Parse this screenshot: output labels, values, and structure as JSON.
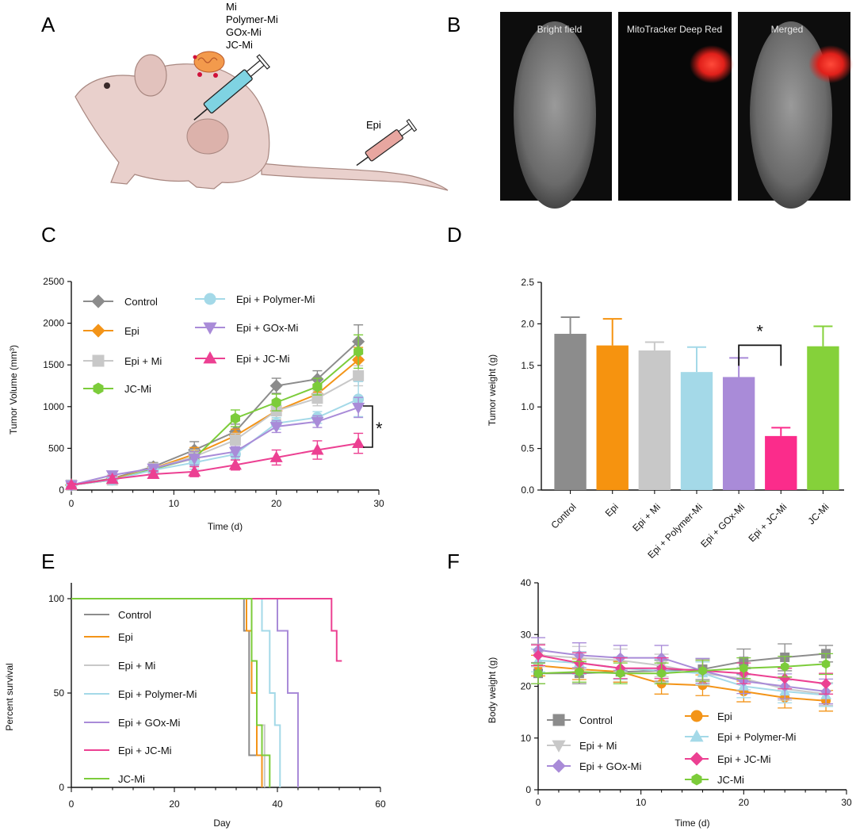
{
  "panels": {
    "a": "A",
    "b": "B",
    "c": "C",
    "d": "D",
    "e": "E",
    "f": "F"
  },
  "panel_a": {
    "treatments": [
      "Mi",
      "Polymer-Mi",
      "GOx-Mi",
      "JC-Mi"
    ],
    "epi_label": "Epi",
    "colors": {
      "mouse": "#e9d0cc",
      "mouse_edge": "#a88780",
      "syringe_blue": "#7fd3e2",
      "syringe_red": "#e8a6a0",
      "mito": "#f39a4c"
    }
  },
  "panel_b": {
    "labels": [
      "Bright field",
      "MitoTracker Deep Red",
      "Merged"
    ]
  },
  "chart_data": [
    {
      "panel": "C",
      "type": "line",
      "xlabel": "Time (d)",
      "ylabel": "Tumor  Volume (mm³)",
      "xlim": [
        0,
        30
      ],
      "ylim": [
        0,
        2500
      ],
      "xticks": [
        "0",
        "10",
        "20",
        "30"
      ],
      "yticks": [
        "0",
        "500",
        "1000",
        "1500",
        "2000",
        "2500"
      ],
      "significance": "*",
      "x": [
        0,
        4,
        8,
        12,
        16,
        20,
        24,
        28
      ],
      "series": [
        {
          "name": "Control",
          "color": "#8c8c8c",
          "marker": "diamond",
          "values": [
            60,
            140,
            280,
            480,
            700,
            1250,
            1330,
            1780
          ],
          "error": [
            20,
            40,
            50,
            100,
            90,
            90,
            100,
            200
          ]
        },
        {
          "name": "Epi",
          "color": "#f39418",
          "marker": "diamond",
          "values": [
            60,
            130,
            260,
            430,
            650,
            950,
            1150,
            1560
          ],
          "error": [
            20,
            40,
            40,
            80,
            80,
            100,
            100,
            150
          ]
        },
        {
          "name": "Epi + Mi",
          "color": "#c8c8c8",
          "marker": "square",
          "values": [
            60,
            120,
            260,
            400,
            600,
            950,
            1100,
            1370
          ],
          "error": [
            20,
            40,
            40,
            80,
            80,
            100,
            90,
            120
          ]
        },
        {
          "name": "JC-Mi",
          "color": "#7ccc3a",
          "marker": "hexagon",
          "values": [
            60,
            120,
            250,
            380,
            860,
            1050,
            1240,
            1660
          ],
          "error": [
            20,
            40,
            40,
            80,
            100,
            100,
            100,
            200
          ]
        },
        {
          "name": "Epi + Polymer-Mi",
          "color": "#a4d9e8",
          "marker": "circle",
          "values": [
            60,
            120,
            240,
            330,
            430,
            800,
            870,
            1090
          ],
          "error": [
            20,
            40,
            40,
            80,
            60,
            70,
            70,
            210
          ]
        },
        {
          "name": "Epi + GOx-Mi",
          "color": "#a98bd8",
          "marker": "triangle-down",
          "values": [
            60,
            180,
            260,
            380,
            460,
            760,
            820,
            990
          ],
          "error": [
            20,
            40,
            40,
            80,
            60,
            70,
            70,
            120
          ]
        },
        {
          "name": "Epi + JC-Mi",
          "color": "#ec4092",
          "marker": "triangle-up",
          "values": [
            60,
            130,
            190,
            220,
            300,
            390,
            480,
            560
          ],
          "error": [
            20,
            40,
            40,
            60,
            60,
            90,
            110,
            120
          ]
        }
      ]
    },
    {
      "panel": "D",
      "type": "bar",
      "ylabel": "Tumor weight (g)",
      "ylim": [
        0,
        2.5
      ],
      "yticks": [
        "0.0",
        "0.5",
        "1.0",
        "1.5",
        "2.0",
        "2.5"
      ],
      "significance": "*",
      "categories": [
        "Control",
        "Epi",
        "Epi + Mi",
        "Epi + Polymer-Mi",
        "Epi + GOx-Mi",
        "Epi + JC-Mi",
        "JC-Mi"
      ],
      "values": [
        1.88,
        1.74,
        1.68,
        1.42,
        1.36,
        0.65,
        1.73
      ],
      "error": [
        0.2,
        0.32,
        0.1,
        0.3,
        0.23,
        0.1,
        0.24
      ],
      "colors": [
        "#8c8c8c",
        "#f6930f",
        "#c8c8c8",
        "#a4d9e8",
        "#a98bd8",
        "#fb2c8b",
        "#85d13a"
      ]
    },
    {
      "panel": "E",
      "type": "line",
      "xlabel": "Day",
      "ylabel": "Percent survival",
      "xlim": [
        0,
        60
      ],
      "ylim": [
        0,
        100
      ],
      "xticks": [
        "0",
        "20",
        "40",
        "60"
      ],
      "yticks": [
        "0",
        "50",
        "100"
      ],
      "series": [
        {
          "name": "Control",
          "color": "#8c8c8c",
          "steps": [
            [
              0,
              100
            ],
            [
              33.5,
              100
            ],
            [
              33.5,
              83
            ],
            [
              34.5,
              83
            ],
            [
              34.5,
              17
            ],
            [
              37,
              17
            ],
            [
              37,
              0
            ]
          ]
        },
        {
          "name": "Epi",
          "color": "#f39418",
          "steps": [
            [
              0,
              100
            ],
            [
              34,
              100
            ],
            [
              34,
              83
            ],
            [
              35,
              83
            ],
            [
              35,
              50
            ],
            [
              36,
              50
            ],
            [
              36,
              17
            ],
            [
              37,
              17
            ],
            [
              37,
              0
            ]
          ]
        },
        {
          "name": "Epi + Mi",
          "color": "#c8c8c8",
          "steps": [
            [
              0,
              100
            ],
            [
              35,
              100
            ],
            [
              35,
              67
            ],
            [
              36,
              67
            ],
            [
              36,
              33
            ],
            [
              37.5,
              33
            ],
            [
              37.5,
              0
            ]
          ]
        },
        {
          "name": "Epi + Polymer-Mi",
          "color": "#a4d9e8",
          "steps": [
            [
              0,
              100
            ],
            [
              37,
              100
            ],
            [
              37,
              83
            ],
            [
              38.5,
              83
            ],
            [
              38.5,
              50
            ],
            [
              39.5,
              50
            ],
            [
              39.5,
              33
            ],
            [
              40.5,
              33
            ],
            [
              40.5,
              0
            ]
          ]
        },
        {
          "name": "Epi + GOx-Mi",
          "color": "#a98bd8",
          "steps": [
            [
              0,
              100
            ],
            [
              40,
              100
            ],
            [
              40,
              83
            ],
            [
              42,
              83
            ],
            [
              42,
              50
            ],
            [
              44,
              50
            ],
            [
              44,
              0
            ]
          ]
        },
        {
          "name": "Epi + JC-Mi",
          "color": "#ec4092",
          "steps": [
            [
              0,
              100
            ],
            [
              50.5,
              100
            ],
            [
              50.5,
              83
            ],
            [
              51.5,
              83
            ],
            [
              51.5,
              67
            ],
            [
              52.5,
              67
            ]
          ]
        },
        {
          "name": "JC-Mi",
          "color": "#7ccc3a",
          "steps": [
            [
              0,
              100
            ],
            [
              35,
              100
            ],
            [
              35,
              67
            ],
            [
              36,
              67
            ],
            [
              36,
              33
            ],
            [
              37,
              33
            ],
            [
              37,
              17
            ],
            [
              38.5,
              17
            ],
            [
              38.5,
              0
            ]
          ]
        }
      ]
    },
    {
      "panel": "F",
      "type": "line",
      "xlabel": "Time (d)",
      "ylabel": "Body weight (g)",
      "xlim": [
        0,
        30
      ],
      "ylim": [
        0,
        40
      ],
      "xticks": [
        "0",
        "10",
        "20",
        "30"
      ],
      "yticks": [
        "0",
        "10",
        "20",
        "30",
        "40"
      ],
      "x": [
        0,
        4,
        8,
        12,
        16,
        20,
        24,
        28
      ],
      "series": [
        {
          "name": "Control",
          "color": "#8c8c8c",
          "marker": "square",
          "values": [
            22.5,
            22.5,
            22.8,
            23.0,
            23.3,
            24.8,
            25.6,
            26.3
          ],
          "error": [
            2.0,
            2.0,
            2.0,
            2.0,
            2.0,
            2.4,
            2.6,
            1.6
          ]
        },
        {
          "name": "Epi",
          "color": "#f39418",
          "marker": "circle",
          "values": [
            24.0,
            23.3,
            22.8,
            20.5,
            20.2,
            19.0,
            17.8,
            17.2
          ],
          "error": [
            2.0,
            2.0,
            2.0,
            2.0,
            2.0,
            2.0,
            2.0,
            2.0
          ]
        },
        {
          "name": "Epi + Mi",
          "color": "#c8c8c8",
          "marker": "triangle-down",
          "values": [
            26.0,
            25.5,
            25.0,
            24.0,
            22.5,
            21.5,
            19.5,
            18.5
          ],
          "error": [
            2.2,
            2.2,
            2.2,
            2.2,
            2.2,
            2.2,
            2.2,
            2.2
          ]
        },
        {
          "name": "Epi + Polymer-Mi",
          "color": "#a4d9e8",
          "marker": "triangle-up",
          "values": [
            25.0,
            24.5,
            23.5,
            23.0,
            22.5,
            20.0,
            19.0,
            18.3
          ],
          "error": [
            2.2,
            2.2,
            2.2,
            2.2,
            2.2,
            2.2,
            2.2,
            2.2
          ]
        },
        {
          "name": "Epi + GOx-Mi",
          "color": "#a98bd8",
          "marker": "diamond",
          "values": [
            27.0,
            26.0,
            25.5,
            25.5,
            23.0,
            21.0,
            20.0,
            19.0
          ],
          "error": [
            2.4,
            2.4,
            2.4,
            2.4,
            2.4,
            2.4,
            2.4,
            2.4
          ]
        },
        {
          "name": "Epi + JC-Mi",
          "color": "#ec4092",
          "marker": "diamond",
          "values": [
            26.0,
            24.5,
            23.5,
            23.5,
            23.0,
            22.5,
            21.5,
            20.5
          ],
          "error": [
            2.0,
            2.0,
            2.0,
            2.0,
            2.0,
            2.0,
            2.0,
            2.0
          ]
        },
        {
          "name": "JC-Mi",
          "color": "#7ccc3a",
          "marker": "hexagon",
          "values": [
            22.5,
            22.8,
            22.5,
            22.5,
            23.0,
            23.5,
            23.8,
            24.3
          ],
          "error": [
            2.0,
            2.0,
            2.0,
            2.0,
            2.0,
            2.0,
            2.0,
            2.0
          ]
        }
      ]
    }
  ]
}
